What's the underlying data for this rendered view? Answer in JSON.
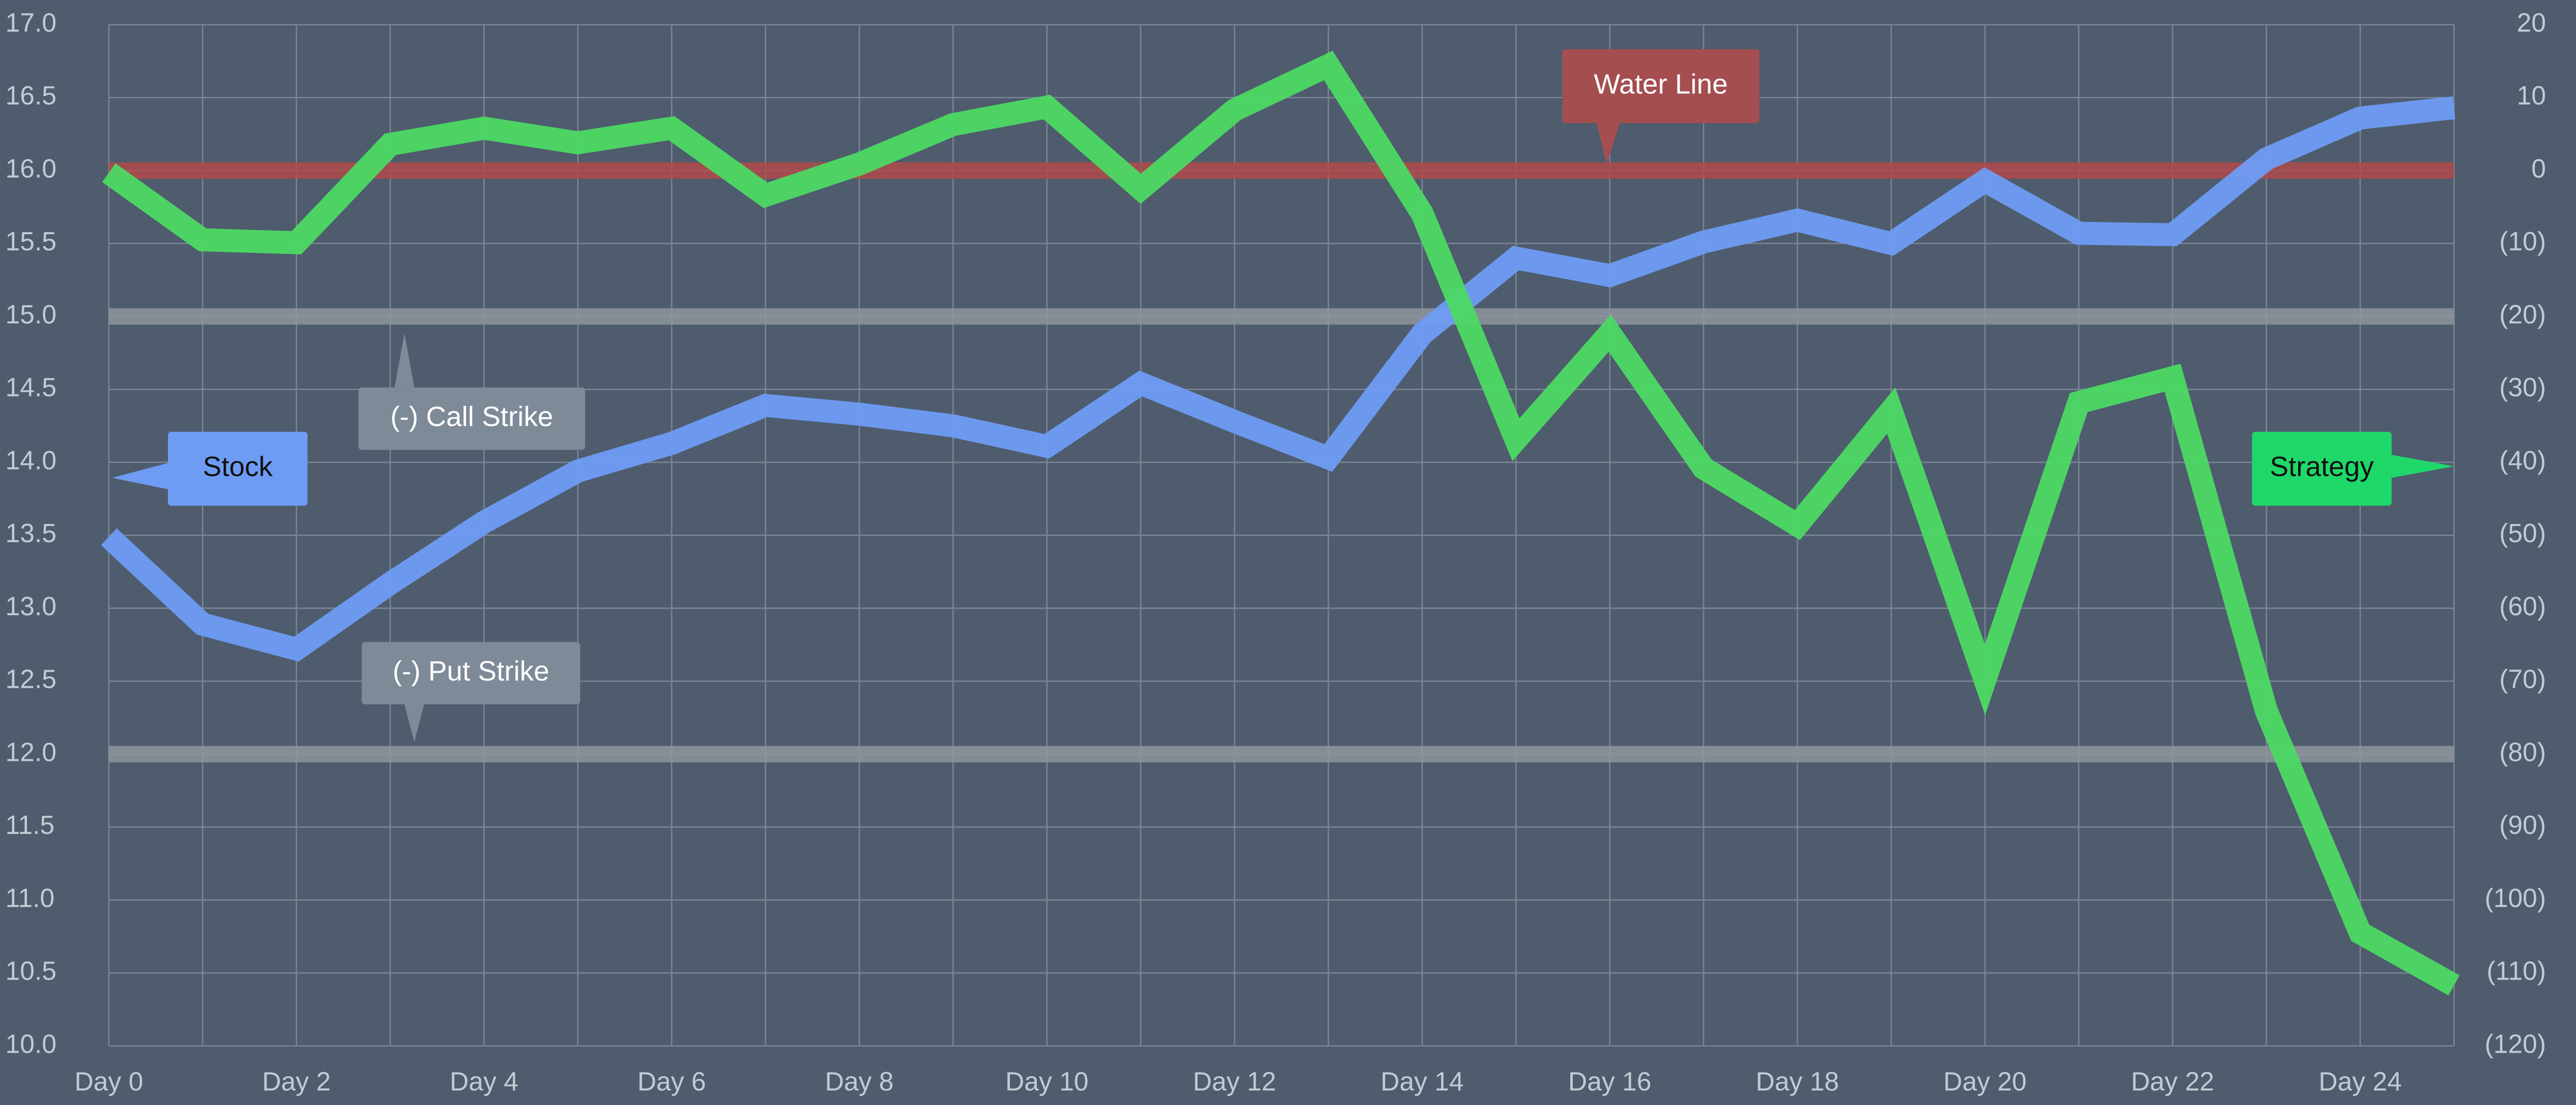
{
  "chart_data": {
    "type": "line",
    "categories": [
      "Day 0",
      null,
      "Day 2",
      null,
      "Day 4",
      null,
      "Day 6",
      null,
      "Day 8",
      null,
      "Day 10",
      null,
      "Day 12",
      null,
      "Day 14",
      null,
      "Day 16",
      null,
      "Day 18",
      null,
      "Day 20",
      null,
      "Day 22",
      null,
      "Day 24",
      null
    ],
    "series": [
      {
        "name": "Stock",
        "color": "#6e9cf4",
        "axis": "y",
        "values": [
          13.49,
          12.89,
          12.72,
          13.17,
          13.59,
          13.94,
          14.13,
          14.39,
          14.33,
          14.25,
          14.11,
          14.54,
          14.28,
          14.03,
          14.88,
          15.4,
          15.28,
          15.51,
          15.66,
          15.5,
          15.93,
          15.57,
          15.56,
          16.08,
          16.36,
          16.43
        ]
      },
      {
        "name": "Strategy",
        "color": "#4cd964",
        "axis": "y2",
        "values": [
          -0.3,
          -9.5,
          -9.9,
          3.6,
          5.8,
          3.8,
          5.8,
          -3.4,
          0.9,
          6.3,
          8.7,
          -2.5,
          8.3,
          14.4,
          -5.9,
          -36.9,
          -22.3,
          -40.8,
          -48.6,
          -32.9,
          -69.8,
          -31.8,
          -28.4,
          -74.1,
          -104.5,
          -111.7
        ]
      }
    ],
    "reference_lines": [
      {
        "label": "Water Line",
        "value": 0,
        "axis": "y2",
        "color": "#b04a4a"
      },
      {
        "label": "(-) Call Strike",
        "value": 15,
        "axis": "y",
        "color": "#8e959c"
      },
      {
        "label": "(-) Put Strike",
        "value": 12,
        "axis": "y",
        "color": "#8e959c"
      }
    ],
    "ylim": [
      10,
      17
    ],
    "yticks": [
      {
        "value": 10,
        "label": "10.0"
      },
      {
        "value": 10.5,
        "label": "10.5"
      },
      {
        "value": 11,
        "label": "11.0"
      },
      {
        "value": 11.5,
        "label": "11.5"
      },
      {
        "value": 12,
        "label": "12.0"
      },
      {
        "value": 12.5,
        "label": "12.5"
      },
      {
        "value": 13,
        "label": "13.0"
      },
      {
        "value": 13.5,
        "label": "13.5"
      },
      {
        "value": 14,
        "label": "14.0"
      },
      {
        "value": 14.5,
        "label": "14.5"
      },
      {
        "value": 15,
        "label": "15.0"
      },
      {
        "value": 15.5,
        "label": "15.5"
      },
      {
        "value": 16,
        "label": "16.0"
      },
      {
        "value": 16.5,
        "label": "16.5"
      },
      {
        "value": 17,
        "label": "17.0"
      }
    ],
    "y2lim": [
      -120,
      20
    ],
    "y2ticks": [
      {
        "value": -120,
        "label": "(120)"
      },
      {
        "value": -110,
        "label": "(110)"
      },
      {
        "value": -100,
        "label": "(100)"
      },
      {
        "value": -90,
        "label": "(90)"
      },
      {
        "value": -80,
        "label": "(80)"
      },
      {
        "value": -70,
        "label": "(70)"
      },
      {
        "value": -60,
        "label": "(60)"
      },
      {
        "value": -50,
        "label": "(50)"
      },
      {
        "value": -40,
        "label": "(40)"
      },
      {
        "value": -30,
        "label": "(30)"
      },
      {
        "value": -20,
        "label": "(20)"
      },
      {
        "value": -10,
        "label": "(10)"
      },
      0,
      10,
      20
    ],
    "grid": true
  }
}
